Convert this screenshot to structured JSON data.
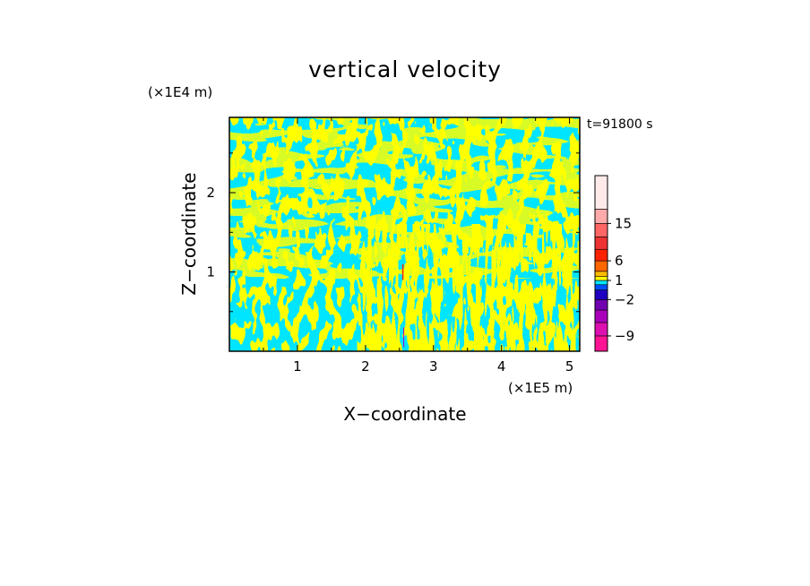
{
  "chart_data": {
    "type": "heatmap",
    "title": "vertical velocity",
    "xlabel": "X−coordinate",
    "ylabel": "Z−coordinate",
    "x_unit": "(×1E5 m)",
    "y_unit": "(×1E4 m)",
    "time_label": "t=91800 s",
    "xlim": [
      0,
      5.15
    ],
    "ylim": [
      0,
      2.95
    ],
    "x_ticks": [
      1,
      2,
      3,
      4,
      5
    ],
    "y_ticks": [
      1,
      2
    ],
    "x_tick_labels": [
      "1",
      "2",
      "3",
      "4",
      "5"
    ],
    "y_tick_labels": [
      "1",
      "2"
    ],
    "field_colors": {
      "positive": "#ffff00",
      "negative": "#00e5ff"
    },
    "colorbar": {
      "levels": [
        -12,
        -9,
        -6,
        -4,
        -2,
        -1,
        0,
        1,
        2,
        4,
        6,
        9,
        12,
        15,
        20,
        26
      ],
      "colors": [
        "#ff1493",
        "#dd10b0",
        "#aa00bb",
        "#7000b0",
        "#2000c0",
        "#0050ff",
        "#00e5ff",
        "#ffff00",
        "#ffbb00",
        "#ff6600",
        "#ff2200",
        "#ee3333",
        "#ff6666",
        "#ffaaaa",
        "#ffeaea"
      ],
      "tick_values": [
        15,
        6,
        1,
        -2,
        -9
      ],
      "tick_labels": [
        "15",
        "6",
        "1",
        "−2",
        "−9"
      ]
    }
  }
}
